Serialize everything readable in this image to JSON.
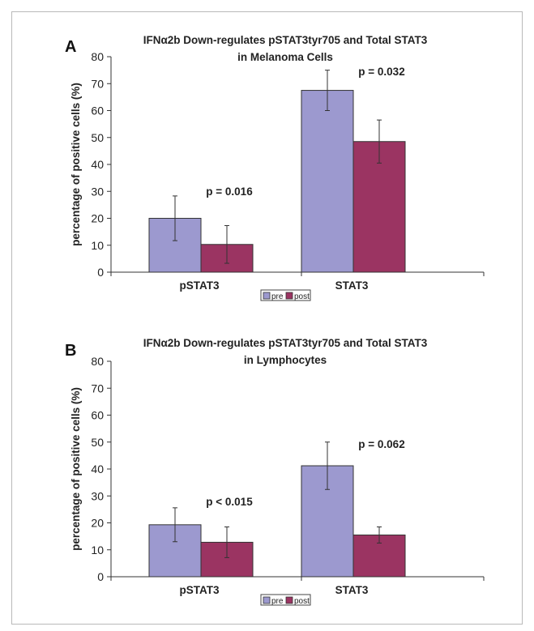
{
  "chart_data": [
    {
      "panel_label": "A",
      "type": "bar",
      "title": "IFNα2b Down-regulates pSTAT3tyr705 and Total STAT3",
      "subtitle": "in Melanoma Cells",
      "xlabel": "",
      "ylabel": "percentage of positive cells (%)",
      "ylim": [
        0,
        80
      ],
      "yticks": [
        0,
        10,
        20,
        30,
        40,
        50,
        60,
        70,
        80
      ],
      "categories": [
        "pSTAT3",
        "STAT3"
      ],
      "series": [
        {
          "name": "pre",
          "values": [
            20,
            67.5
          ],
          "error": [
            8.3,
            7.5
          ]
        },
        {
          "name": "post",
          "values": [
            10.3,
            48.5
          ],
          "error": [
            7,
            8
          ]
        }
      ],
      "annotations": [
        "p = 0.016",
        "p = 0.032"
      ],
      "legend": "bottom-center",
      "grid": false
    },
    {
      "panel_label": "B",
      "type": "bar",
      "title": "IFNα2b Down-regulates pSTAT3tyr705 and Total STAT3",
      "subtitle": "in Lymphocytes",
      "xlabel": "",
      "ylabel": "percentage of positive cells (%)",
      "ylim": [
        0,
        80
      ],
      "yticks": [
        0,
        10,
        20,
        30,
        40,
        50,
        60,
        70,
        80
      ],
      "categories": [
        "pSTAT3",
        "STAT3"
      ],
      "series": [
        {
          "name": "pre",
          "values": [
            19.3,
            41.2
          ],
          "error": [
            6.3,
            8.8
          ]
        },
        {
          "name": "post",
          "values": [
            12.8,
            15.5
          ],
          "error": [
            5.7,
            3
          ]
        }
      ],
      "annotations": [
        "p < 0.015",
        "p = 0.062"
      ],
      "legend": "bottom-center",
      "grid": false
    }
  ],
  "colors": {
    "pre": "#9c99cf",
    "post": "#9b3462"
  }
}
